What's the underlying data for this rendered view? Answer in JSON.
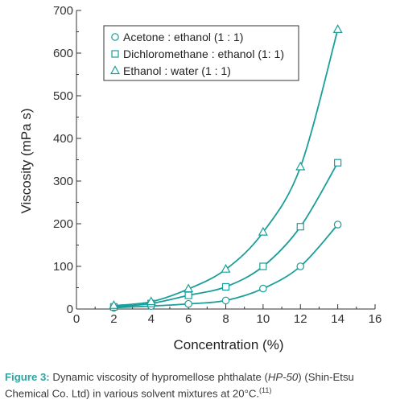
{
  "chart_data": {
    "type": "line",
    "title": "",
    "xlabel": "Concentration (%)",
    "ylabel": "Viscosity (mPa s)",
    "xlim": [
      0,
      16
    ],
    "ylim": [
      0,
      700
    ],
    "x_ticks": [
      0,
      2,
      4,
      6,
      8,
      10,
      12,
      14,
      16
    ],
    "y_ticks": [
      0,
      100,
      200,
      300,
      400,
      500,
      600,
      700
    ],
    "grid": false,
    "legend_position": "top-left",
    "x": [
      2,
      4,
      6,
      8,
      10,
      12,
      14
    ],
    "series": [
      {
        "name": "Acetone : ethanol (1 : 1)",
        "marker": "circle",
        "values": [
          3,
          7,
          12,
          20,
          48,
          100,
          198
        ]
      },
      {
        "name": "Dichloromethane : ethanol (1: 1)",
        "marker": "square",
        "values": [
          5,
          13,
          32,
          52,
          100,
          193,
          343
        ]
      },
      {
        "name": "Ethanol : water (1 : 1)",
        "marker": "triangle",
        "values": [
          8,
          17,
          47,
          93,
          180,
          333,
          655
        ]
      }
    ],
    "colors": {
      "line": "#1a9e99",
      "axis": "#333333"
    }
  },
  "caption": {
    "label": "Figure 3:",
    "text_before": " Dynamic viscosity of hypromellose phthalate (",
    "code": "HP-50",
    "text_after": ") (Shin-Etsu Chemical Co. Ltd) in various solvent mixtures at 20°C.",
    "ref": "(11)"
  }
}
